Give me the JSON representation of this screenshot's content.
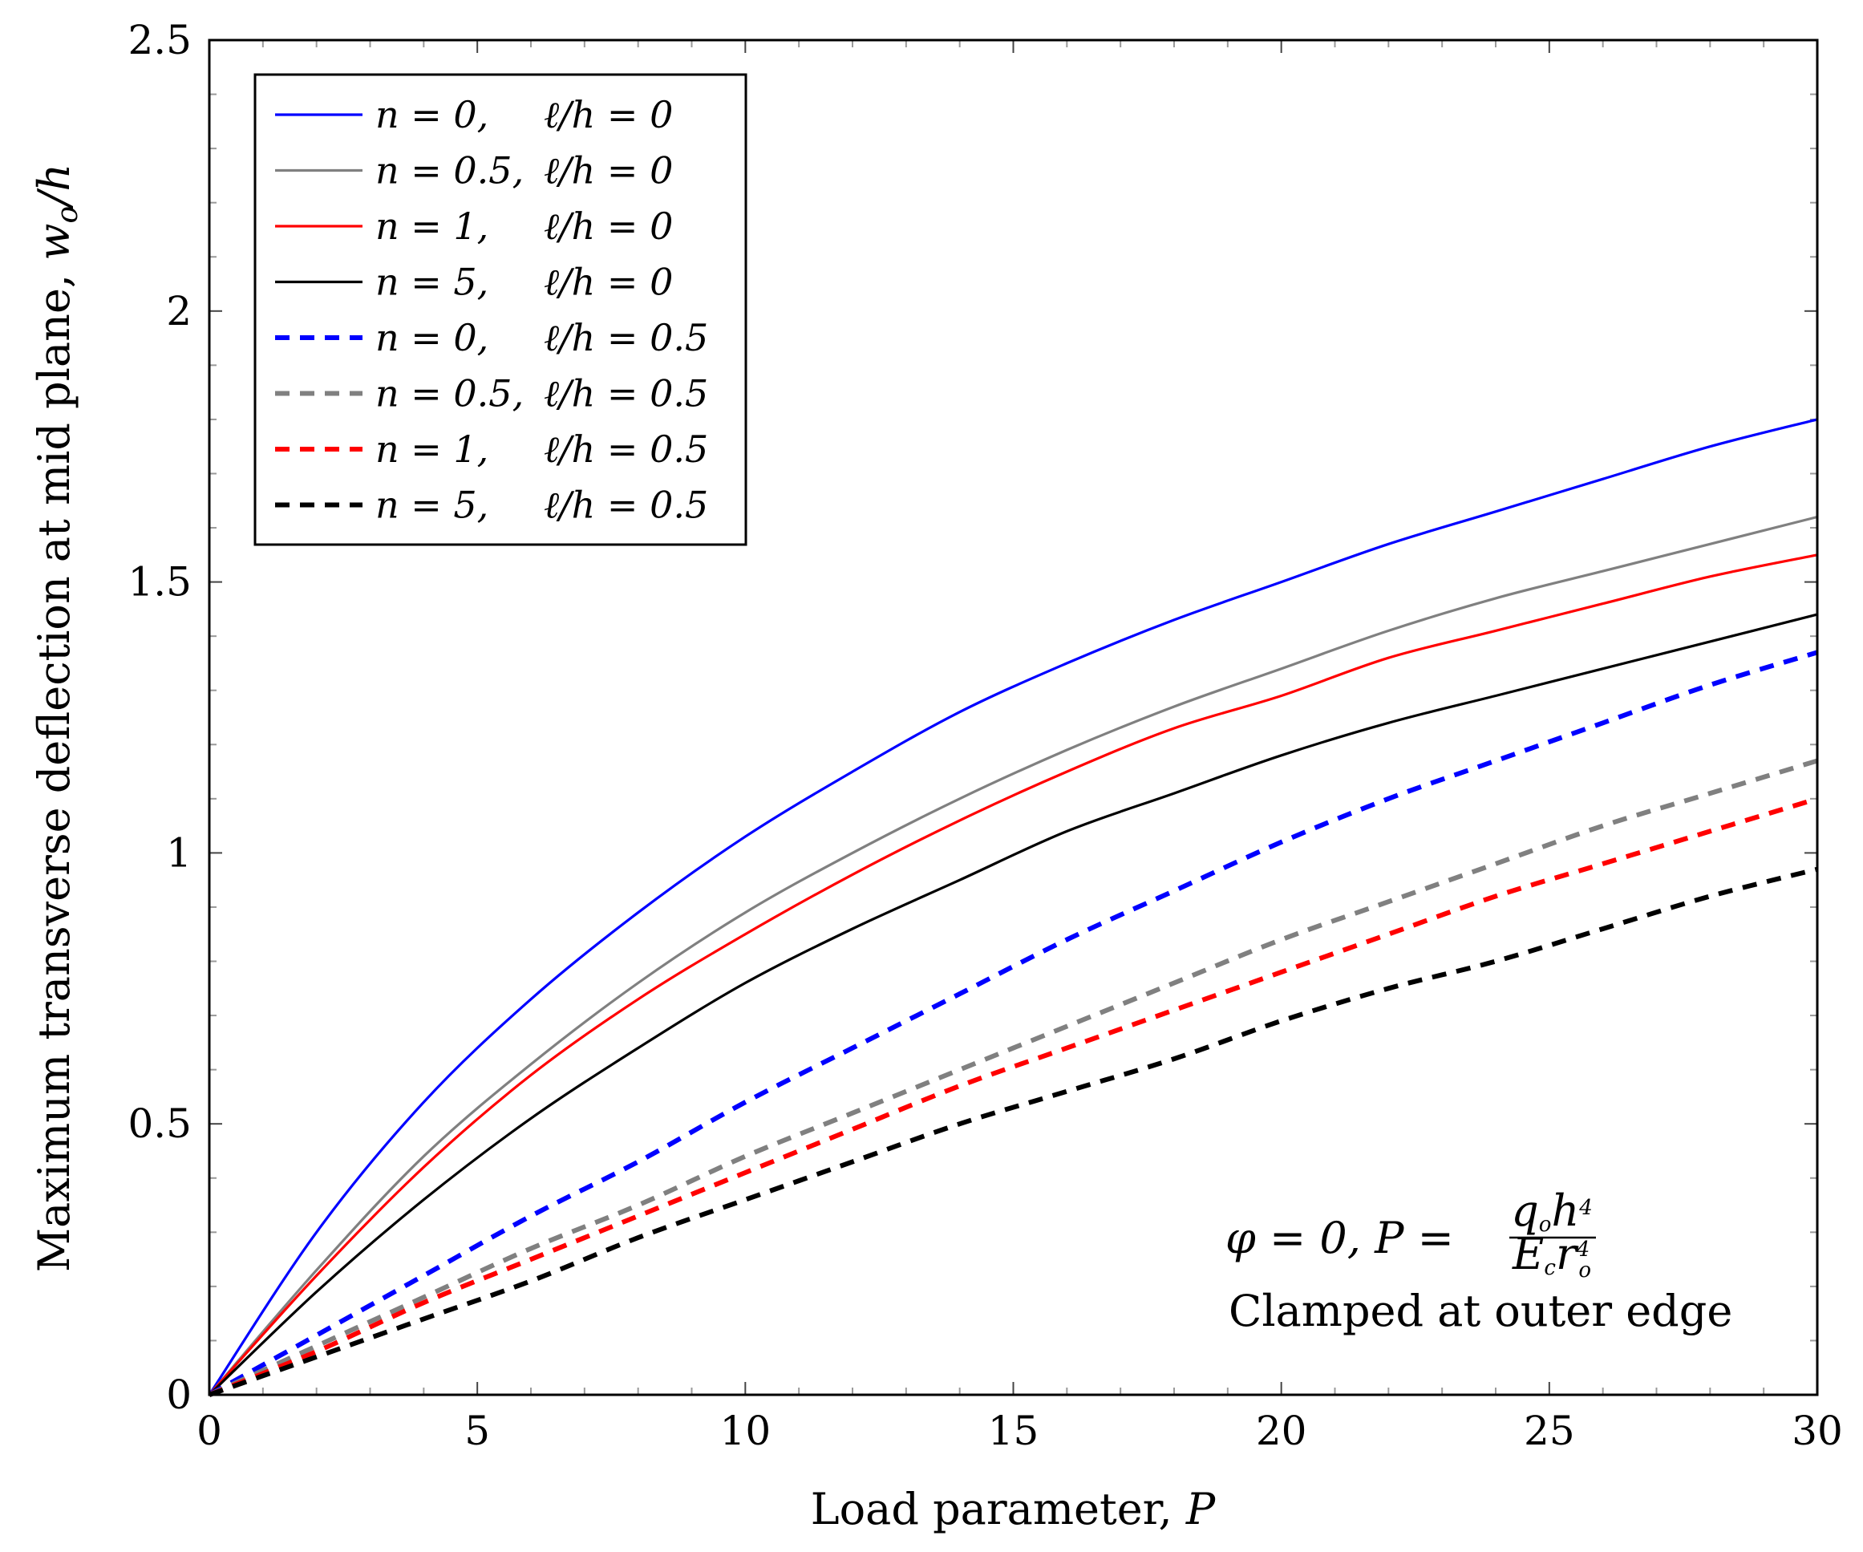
{
  "chart_data": {
    "type": "line",
    "xlabel_text": "Load parameter, ",
    "xlabel_var": "P",
    "ylabel_text": "Maximum transverse deflection at mid plane, ",
    "ylabel_var": "w",
    "ylabel_sub": "o",
    "ylabel_tail": "/h",
    "xlim": [
      0,
      30
    ],
    "ylim": [
      0,
      2.5
    ],
    "xticks": [
      "0",
      "5",
      "10",
      "15",
      "20",
      "25",
      "30"
    ],
    "yticks": [
      "0",
      "0.5",
      "1",
      "1.5",
      "2",
      "2.5"
    ],
    "x": [
      0,
      2,
      4,
      6,
      8,
      10,
      12,
      14,
      16,
      18,
      20,
      22,
      24,
      26,
      28,
      30
    ],
    "series": [
      {
        "name": "n = 0,    ℓ/h = 0",
        "n": "n = 0,",
        "l": "ℓ/h = 0",
        "color": "#0000ff",
        "dash": false,
        "values": [
          0,
          0.3,
          0.54,
          0.73,
          0.89,
          1.03,
          1.15,
          1.26,
          1.35,
          1.43,
          1.5,
          1.57,
          1.63,
          1.69,
          1.75,
          1.8
        ]
      },
      {
        "name": "n = 0.5, ℓ/h = 0",
        "n": "n = 0.5,",
        "l": "ℓ/h = 0",
        "color": "#808080",
        "dash": false,
        "values": [
          0,
          0.23,
          0.44,
          0.61,
          0.76,
          0.89,
          1.0,
          1.1,
          1.19,
          1.27,
          1.34,
          1.41,
          1.47,
          1.52,
          1.57,
          1.62
        ]
      },
      {
        "name": "n = 1,    ℓ/h = 0",
        "n": "n = 1,",
        "l": "ℓ/h = 0",
        "color": "#ff0000",
        "dash": false,
        "values": [
          0,
          0.22,
          0.42,
          0.59,
          0.73,
          0.85,
          0.96,
          1.06,
          1.15,
          1.23,
          1.29,
          1.36,
          1.41,
          1.46,
          1.51,
          1.55
        ]
      },
      {
        "name": "n = 5,    ℓ/h = 0",
        "n": "n = 5,",
        "l": "ℓ/h = 0",
        "color": "#000000",
        "dash": false,
        "values": [
          0,
          0.19,
          0.36,
          0.51,
          0.64,
          0.76,
          0.86,
          0.95,
          1.04,
          1.11,
          1.18,
          1.24,
          1.29,
          1.34,
          1.39,
          1.44
        ]
      },
      {
        "name": "n = 0,    ℓ/h = 0.5",
        "n": "n = 0,",
        "l": "ℓ/h = 0.5",
        "color": "#0000ff",
        "dash": true,
        "values": [
          0,
          0.11,
          0.22,
          0.33,
          0.43,
          0.54,
          0.64,
          0.74,
          0.84,
          0.93,
          1.02,
          1.1,
          1.17,
          1.24,
          1.31,
          1.37
        ]
      },
      {
        "name": "n = 0.5, ℓ/h = 0.5",
        "n": "n = 0.5,",
        "l": "ℓ/h = 0.5",
        "color": "#808080",
        "dash": true,
        "values": [
          0,
          0.09,
          0.18,
          0.27,
          0.35,
          0.44,
          0.52,
          0.6,
          0.68,
          0.76,
          0.84,
          0.91,
          0.98,
          1.05,
          1.11,
          1.17
        ]
      },
      {
        "name": "n = 1,    ℓ/h = 0.5",
        "n": "n = 1,",
        "l": "ℓ/h = 0.5",
        "color": "#ff0000",
        "dash": true,
        "values": [
          0,
          0.08,
          0.17,
          0.25,
          0.33,
          0.41,
          0.49,
          0.57,
          0.64,
          0.71,
          0.78,
          0.85,
          0.92,
          0.98,
          1.04,
          1.1
        ]
      },
      {
        "name": "n = 5,    ℓ/h = 0.5",
        "n": "n = 5,",
        "l": "ℓ/h = 0.5",
        "color": "#000000",
        "dash": true,
        "values": [
          0,
          0.07,
          0.14,
          0.21,
          0.29,
          0.36,
          0.43,
          0.5,
          0.56,
          0.62,
          0.69,
          0.75,
          0.8,
          0.86,
          0.92,
          0.97
        ]
      }
    ],
    "annotation_line1": "φ = 0,  P = ",
    "annotation_frac_num": "q",
    "annotation_frac_num_sub": "o",
    "annotation_frac_num_tail": "h",
    "annotation_frac_num_sup": "4",
    "annotation_frac_den": "E",
    "annotation_frac_den_sub": "c",
    "annotation_frac_den_tail": "r",
    "annotation_frac_den_sup": "4",
    "annotation_frac_den_sub2": "o",
    "annotation_line2": "Clamped at outer edge",
    "legend_position": "top-left",
    "grid": false
  }
}
